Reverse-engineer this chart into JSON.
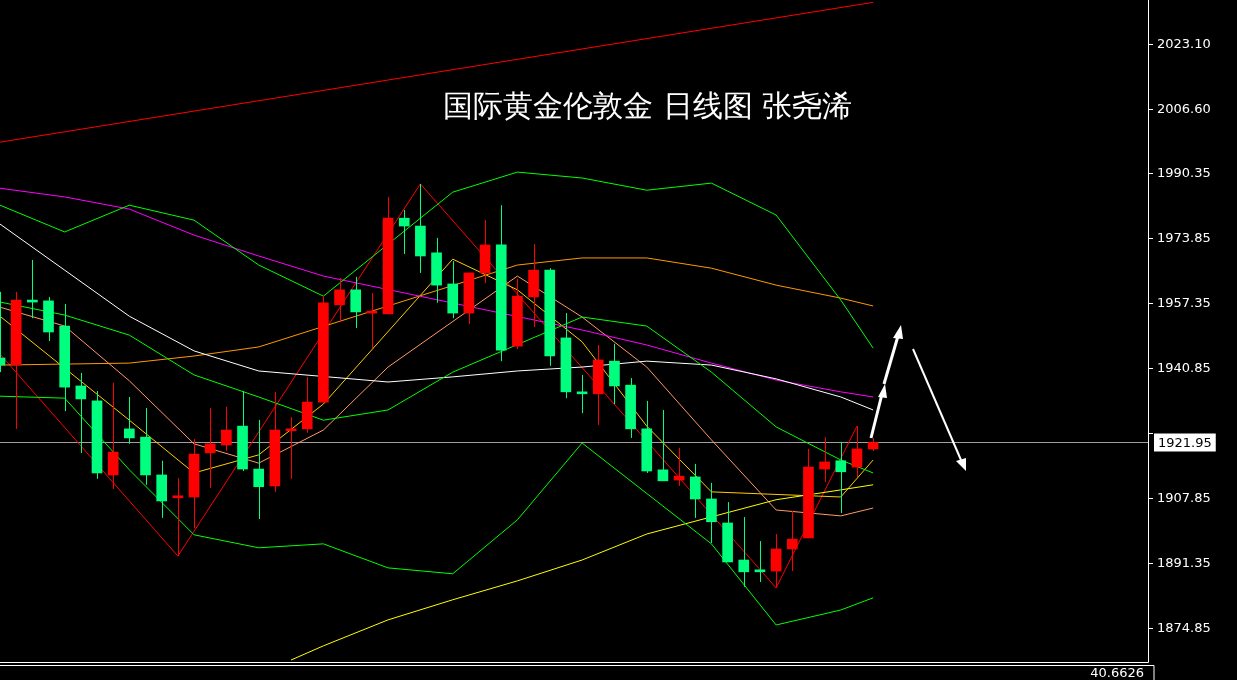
{
  "chart_data": {
    "type": "candlestick",
    "title": "国际黄金伦敦金 日线图 张尧浠",
    "categories": [
      null,
      null,
      null,
      null,
      null,
      null,
      null,
      null,
      null,
      null,
      null,
      null,
      null,
      null,
      null,
      null,
      null,
      null,
      null,
      null,
      null,
      null,
      null,
      null,
      null,
      null,
      null,
      null,
      null,
      null,
      null,
      null,
      null,
      null,
      null,
      null,
      null,
      null,
      null,
      null,
      null,
      null,
      null,
      null,
      null,
      null,
      null,
      null,
      null,
      null,
      null,
      null,
      null,
      null,
      null,
      null,
      null,
      null,
      null,
      null,
      null,
      null,
      null,
      null,
      null,
      null,
      null,
      null,
      null,
      null,
      null,
      null
    ],
    "ohlc": [
      [
        1943.4,
        1960.2,
        1939.8,
        1941.6
      ],
      [
        1941.6,
        1960.2,
        1925.4,
        1958.1
      ],
      [
        1957.9,
        1968.3,
        1953.5,
        1957.6
      ],
      [
        1957.9,
        1958.9,
        1947.7,
        1950.0
      ],
      [
        1951.5,
        1957.1,
        1929.9,
        1936.0
      ],
      [
        1936.3,
        1939.6,
        1919.3,
        1933.0
      ],
      [
        1932.5,
        1935.0,
        1912.7,
        1914.2
      ],
      [
        1913.7,
        1937.1,
        1910.1,
        1919.5
      ],
      [
        1925.4,
        1933.5,
        1921.6,
        1923.1
      ],
      [
        1923.3,
        1930.7,
        1911.2,
        1913.7
      ],
      [
        1913.7,
        1917.3,
        1902.8,
        1907.1
      ],
      [
        1907.9,
        1912.9,
        1893.1,
        1908.1
      ],
      [
        1908.1,
        1922.8,
        1900.2,
        1919.0
      ],
      [
        1919.3,
        1930.7,
        1910.4,
        1921.6
      ],
      [
        1921.3,
        1931.0,
        1919.8,
        1925.1
      ],
      [
        1926.1,
        1935.0,
        1914.7,
        1915.2
      ],
      [
        1915.2,
        1927.7,
        1902.5,
        1910.7
      ],
      [
        1910.9,
        1934.8,
        1909.4,
        1925.1
      ],
      [
        1924.9,
        1928.4,
        1912.7,
        1925.4
      ],
      [
        1925.4,
        1938.6,
        1924.4,
        1932.2
      ],
      [
        1932.2,
        1959.1,
        1932.2,
        1957.4
      ],
      [
        1956.9,
        1963.7,
        1952.5,
        1960.7
      ],
      [
        1960.7,
        1964.0,
        1951.0,
        1955.1
      ],
      [
        1954.8,
        1959.9,
        1945.9,
        1955.1
      ],
      [
        1954.6,
        1984.3,
        1954.6,
        1978.9
      ],
      [
        1978.9,
        1981.0,
        1969.8,
        1976.9
      ],
      [
        1976.9,
        1987.6,
        1965.0,
        1969.3
      ],
      [
        1970.1,
        1973.9,
        1957.4,
        1961.9
      ],
      [
        1962.2,
        1968.0,
        1953.5,
        1954.8
      ],
      [
        1954.8,
        1965.0,
        1952.0,
        1965.0
      ],
      [
        1965.0,
        1978.4,
        1962.4,
        1972.1
      ],
      [
        1972.1,
        1982.2,
        1942.6,
        1945.4
      ],
      [
        1946.4,
        1963.5,
        1945.7,
        1959.1
      ],
      [
        1958.9,
        1972.3,
        1951.3,
        1965.7
      ],
      [
        1965.7,
        1966.2,
        1941.4,
        1943.9
      ],
      [
        1948.5,
        1954.8,
        1933.2,
        1934.8
      ],
      [
        1934.8,
        1939.1,
        1929.4,
        1934.3
      ],
      [
        1934.3,
        1946.7,
        1926.4,
        1942.9
      ],
      [
        1942.6,
        1947.0,
        1931.7,
        1936.3
      ],
      [
        1936.5,
        1938.3,
        1923.1,
        1925.4
      ],
      [
        1925.4,
        1932.5,
        1914.2,
        1914.7
      ],
      [
        1915.0,
        1930.2,
        1912.2,
        1912.2
      ],
      [
        1912.4,
        1920.6,
        1910.9,
        1913.4
      ],
      [
        1913.2,
        1916.5,
        1902.8,
        1907.6
      ],
      [
        1907.6,
        1911.7,
        1896.4,
        1901.8
      ],
      [
        1901.5,
        1906.8,
        1891.6,
        1891.6
      ],
      [
        1892.1,
        1903.0,
        1885.3,
        1889.1
      ],
      [
        1889.6,
        1896.9,
        1886.5,
        1889.1
      ],
      [
        1889.3,
        1898.7,
        1885.0,
        1894.9
      ],
      [
        1894.9,
        1904.6,
        1889.3,
        1897.4
      ],
      [
        1897.7,
        1920.3,
        1897.7,
        1915.7
      ],
      [
        1915.2,
        1923.3,
        1911.9,
        1917.0
      ],
      [
        1917.3,
        1922.1,
        1904.0,
        1914.5
      ],
      [
        1915.7,
        1926.1,
        1913.2,
        1920.3
      ],
      [
        1920.3,
        1923.1,
        1919.8,
        1921.95
      ],
      null,
      null,
      null,
      null,
      null,
      null,
      null,
      null,
      null,
      null,
      null,
      null,
      null,
      null,
      null,
      null,
      null
    ],
    "colors": [
      "#00ff7f",
      "#ff0000",
      "#00ff7f",
      "#00ff7f",
      "#00ff7f",
      "#00ff7f",
      "#00ff7f",
      "#ff0000",
      "#00ff7f",
      "#00ff7f",
      "#00ff7f",
      "#ff0000",
      "#ff0000",
      "#ff0000",
      "#ff0000",
      "#00ff7f",
      "#00ff7f",
      "#ff0000",
      "#ff0000",
      "#ff0000",
      "#ff0000",
      "#ff0000",
      "#00ff7f",
      "#ff0000",
      "#ff0000",
      "#00ff7f",
      "#00ff7f",
      "#00ff7f",
      "#00ff7f",
      "#ff0000",
      "#ff0000",
      "#00ff7f",
      "#ff0000",
      "#ff0000",
      "#00ff7f",
      "#00ff7f",
      "#00ff7f",
      "#ff0000",
      "#00ff7f",
      "#00ff7f",
      "#00ff7f",
      "#00ff7f",
      "#ff0000",
      "#00ff7f",
      "#00ff7f",
      "#00ff7f",
      "#00ff7f",
      "#00ff7f",
      "#ff0000",
      "#ff0000",
      "#ff0000",
      "#ff0000",
      "#00ff7f",
      "#ff0000",
      "#ff0000",
      null,
      null,
      null,
      null,
      null,
      null,
      null,
      null,
      null,
      null,
      null,
      null,
      null,
      null,
      null,
      null,
      null
    ],
    "series": [
      {
        "type": "line",
        "color": "#00ff00",
        "values": [
          1982.2,
          null,
          null,
          null,
          1975.4,
          null,
          null,
          null,
          1982.2,
          null,
          null,
          null,
          1978.4,
          null,
          null,
          null,
          1967.0,
          null,
          null,
          null,
          1959.1,
          null,
          null,
          null,
          null,
          null,
          null,
          null,
          1985.5,
          null,
          null,
          null,
          1990.6,
          null,
          null,
          null,
          1989.1,
          null,
          null,
          null,
          1986.0,
          null,
          null,
          null,
          1987.8,
          null,
          null,
          null,
          1979.7,
          null,
          null,
          null,
          1958.1,
          null,
          1945.9,
          null,
          null,
          null,
          null,
          null,
          null,
          null,
          null,
          null,
          null,
          null,
          null,
          null,
          null,
          null,
          null,
          null
        ]
      },
      {
        "type": "line",
        "color": "#00ff00",
        "values": [
          1957.6,
          null,
          null,
          null,
          1954.3,
          null,
          null,
          null,
          1949.2,
          null,
          null,
          null,
          1939.1,
          null,
          null,
          null,
          1933.5,
          null,
          null,
          null,
          1927.6,
          null,
          null,
          null,
          1930.2,
          null,
          null,
          null,
          1939.8,
          null,
          null,
          null,
          null,
          null,
          null,
          null,
          1953.8,
          null,
          null,
          null,
          1951.5,
          null,
          null,
          null,
          1939.8,
          null,
          null,
          null,
          1925.9,
          null,
          null,
          null,
          1917.5,
          null,
          1914.2,
          null,
          null,
          null,
          null,
          null,
          null,
          null,
          null,
          null,
          null,
          null,
          null,
          null,
          null,
          null,
          null,
          null
        ]
      },
      {
        "type": "line",
        "color": "#00ff00",
        "values": [
          1933.7,
          null,
          null,
          null,
          1933.2,
          null,
          null,
          null,
          1915.0,
          null,
          null,
          null,
          1898.5,
          null,
          null,
          null,
          1895.2,
          null,
          null,
          null,
          1896.2,
          null,
          null,
          null,
          1890.1,
          null,
          null,
          null,
          1888.6,
          null,
          null,
          null,
          1902.3,
          null,
          null,
          null,
          1921.8,
          null,
          null,
          null,
          null,
          null,
          null,
          null,
          1896.2,
          null,
          null,
          null,
          1875.6,
          null,
          null,
          null,
          1879.4,
          null,
          1882.5,
          null,
          null,
          null,
          null,
          null,
          null,
          null,
          null,
          null,
          null,
          null,
          null,
          null,
          null,
          null,
          null,
          null
        ]
      },
      {
        "type": "line",
        "color": "#ffffff",
        "values": [
          1977.4,
          null,
          null,
          null,
          1965.7,
          null,
          null,
          null,
          1954.0,
          null,
          null,
          null,
          1945.2,
          null,
          null,
          null,
          1940.1,
          null,
          null,
          null,
          null,
          null,
          null,
          null,
          1937.3,
          null,
          null,
          null,
          1938.6,
          null,
          null,
          null,
          1940.1,
          null,
          null,
          null,
          1941.1,
          null,
          null,
          null,
          1942.6,
          null,
          null,
          null,
          1941.6,
          null,
          null,
          null,
          1938.1,
          null,
          null,
          null,
          1933.5,
          null,
          1930.2,
          null,
          null,
          null,
          null,
          null,
          null,
          null,
          null,
          null,
          null,
          null,
          null,
          null,
          null,
          null,
          null,
          null
        ]
      },
      {
        "type": "line",
        "color": "#ff00ff",
        "values": [
          1986.5,
          null,
          null,
          null,
          1984.3,
          null,
          null,
          null,
          1981.2,
          null,
          null,
          null,
          1974.6,
          null,
          null,
          null,
          1969.3,
          null,
          null,
          null,
          1964.2,
          null,
          null,
          null,
          null,
          null,
          null,
          null,
          null,
          null,
          null,
          null,
          null,
          null,
          null,
          null,
          1950.5,
          null,
          null,
          null,
          1946.7,
          null,
          null,
          null,
          1942.1,
          null,
          null,
          null,
          1937.8,
          null,
          null,
          null,
          1934.8,
          null,
          1933.5,
          null,
          null,
          null,
          null,
          null,
          null,
          null,
          null,
          null,
          null,
          null,
          null,
          null,
          null,
          null,
          null,
          null
        ]
      },
      {
        "type": "line",
        "color": "#ff9900",
        "values": [
          1941.6,
          null,
          null,
          null,
          null,
          null,
          null,
          null,
          1942.1,
          null,
          null,
          null,
          1943.9,
          null,
          null,
          null,
          1946.2,
          null,
          null,
          null,
          null,
          null,
          null,
          null,
          null,
          null,
          null,
          null,
          null,
          null,
          null,
          null,
          1967.0,
          null,
          null,
          null,
          1968.8,
          null,
          null,
          null,
          1968.8,
          null,
          null,
          null,
          1966.2,
          null,
          null,
          null,
          1961.9,
          null,
          null,
          null,
          1958.6,
          null,
          1956.6,
          null,
          null,
          null,
          null,
          null,
          null,
          null,
          null,
          null,
          null,
          null,
          null,
          null,
          null,
          null,
          null,
          null
        ]
      },
      {
        "type": "line",
        "color": "#ffff00",
        "values": [
          null,
          null,
          null,
          null,
          null,
          null,
          null,
          null,
          null,
          null,
          null,
          null,
          null,
          null,
          null,
          null,
          null,
          null,
          1866.7,
          null,
          1870.3,
          null,
          null,
          null,
          1876.9,
          null,
          null,
          null,
          1882.0,
          null,
          null,
          null,
          1886.8,
          null,
          null,
          null,
          1892.1,
          null,
          null,
          null,
          1898.7,
          null,
          null,
          null,
          null,
          null,
          null,
          null,
          1907.4,
          null,
          null,
          null,
          1909.9,
          null,
          1911.2,
          null,
          null,
          null,
          null,
          null,
          null,
          null,
          null,
          null,
          null,
          null,
          null,
          null,
          null,
          null,
          null,
          null
        ]
      },
      {
        "type": "line",
        "color": "#ff9966",
        "values": [
          1956.3,
          null,
          null,
          null,
          1951.5,
          null,
          null,
          null,
          1937.6,
          null,
          null,
          null,
          1921.6,
          null,
          null,
          null,
          1916.7,
          null,
          null,
          null,
          1925.1,
          null,
          null,
          null,
          1941.1,
          null,
          null,
          null,
          null,
          null,
          null,
          null,
          1964.2,
          null,
          null,
          null,
          1953.8,
          null,
          null,
          null,
          1941.1,
          null,
          null,
          null,
          1922.6,
          null,
          null,
          null,
          1904.8,
          null,
          null,
          null,
          1903.3,
          null,
          1905.3,
          null,
          null,
          null,
          null,
          null,
          null,
          null,
          null,
          null,
          null,
          null,
          null,
          null,
          null,
          null,
          null,
          null
        ]
      },
      {
        "type": "line",
        "color": "#ffcc00",
        "values": [
          1954.0,
          null,
          null,
          null,
          null,
          null,
          null,
          null,
          1927.6,
          null,
          null,
          null,
          1914.2,
          null,
          null,
          null,
          1918.8,
          null,
          null,
          null,
          1931.7,
          null,
          null,
          null,
          null,
          null,
          null,
          null,
          1968.5,
          null,
          null,
          null,
          1960.7,
          null,
          null,
          null,
          1947.5,
          null,
          null,
          null,
          1926.1,
          null,
          null,
          null,
          1909.4,
          null,
          null,
          null,
          null,
          null,
          null,
          null,
          1908.1,
          null,
          1917.5,
          null,
          null,
          null,
          null,
          null,
          null,
          null,
          null,
          null,
          null,
          null,
          null,
          null,
          null,
          null,
          null,
          null
        ]
      },
      {
        "type": "line",
        "color": "#ff0000",
        "values": [
          1944.4,
          null,
          null,
          null,
          null,
          null,
          null,
          null,
          null,
          null,
          null,
          1893.1,
          null,
          null,
          null,
          null,
          null,
          null,
          null,
          null,
          null,
          null,
          null,
          null,
          null,
          null,
          1987.6,
          null,
          null,
          null,
          null,
          null,
          null,
          null,
          null,
          null,
          null,
          null,
          null,
          null,
          null,
          null,
          null,
          null,
          null,
          null,
          null,
          null,
          1885.0,
          null,
          null,
          null,
          null,
          1926.1,
          null,
          null,
          null,
          null,
          null,
          null,
          null,
          null,
          null,
          null,
          null,
          null,
          null,
          null,
          null,
          null,
          null,
          null
        ]
      },
      {
        "type": "line",
        "color": "#ff0000",
        "values": [
          1998.2,
          null,
          null,
          null,
          null,
          null,
          null,
          null,
          null,
          null,
          null,
          null,
          null,
          null,
          null,
          null,
          null,
          null,
          null,
          null,
          null,
          null,
          null,
          null,
          null,
          null,
          null,
          null,
          null,
          null,
          null,
          null,
          null,
          null,
          null,
          null,
          null,
          null,
          null,
          null,
          null,
          null,
          null,
          null,
          null,
          null,
          null,
          null,
          null,
          null,
          null,
          null,
          null,
          null,
          2033.7,
          null,
          null,
          null,
          null,
          null,
          null,
          null,
          null,
          null,
          null,
          null,
          null,
          null,
          null,
          null,
          null,
          null
        ]
      }
    ],
    "ylim": [
      1866.2,
      2034.3
    ],
    "yticks": [
      {
        "value": 2023.1,
        "label": "2023.10"
      },
      {
        "value": 2006.6,
        "label": "2006.60"
      },
      1990.35,
      1973.85,
      1957.35,
      1940.85,
      {
        "value": 1924.35,
        "label": null
      },
      1907.85,
      1891.35,
      1874.85
    ],
    "tick_labels": "y",
    "marker": "none",
    "ref_lines": [
      {
        "axis": "y",
        "value": 1921.95,
        "label": "1921.95",
        "color": "#a0a0a0"
      }
    ],
    "annotations": [
      "40.6626"
    ]
  }
}
